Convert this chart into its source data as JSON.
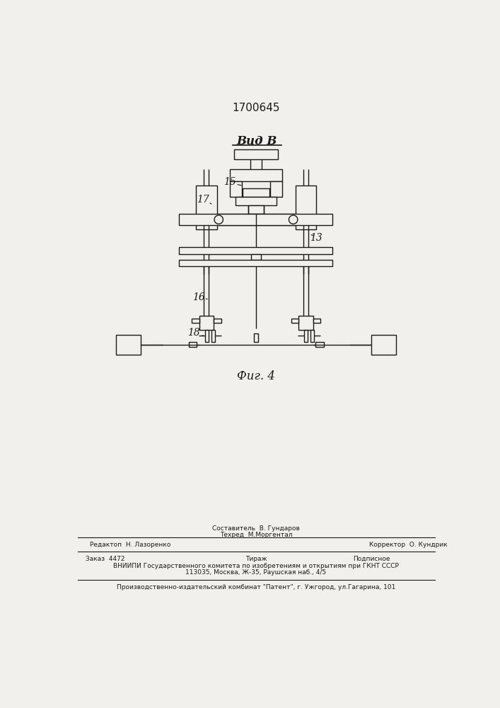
{
  "patent_number": "1700645",
  "view_label": "Вид В",
  "fig_label": "Фиг. 4",
  "bg_color": "#f2f0ed",
  "line_color": "#1a1a1a",
  "lw": 1.0,
  "footer": {
    "sestavitel": "Составитель  В. Гундаров",
    "tehred": "Техред  М.Моргентал",
    "redaktor": "Редактоп  Н. Лазоренко",
    "korrektor": "Корректор  О. Кундрик",
    "zakaz": "Заказ  4472",
    "tirazh": "Тираж",
    "podpisnoe": "Подписное",
    "vniip1": "ВНИИПИ Государственного комитета по изобретениям и открытиям при ГКНТ СССР",
    "vniip2": "113035, Москва, Ж-35, Раушская наб., 4/5",
    "proizv": "Производственно-издательский комбинат \"Патент\", г. Ужгород, ул.Гагарина, 101"
  }
}
